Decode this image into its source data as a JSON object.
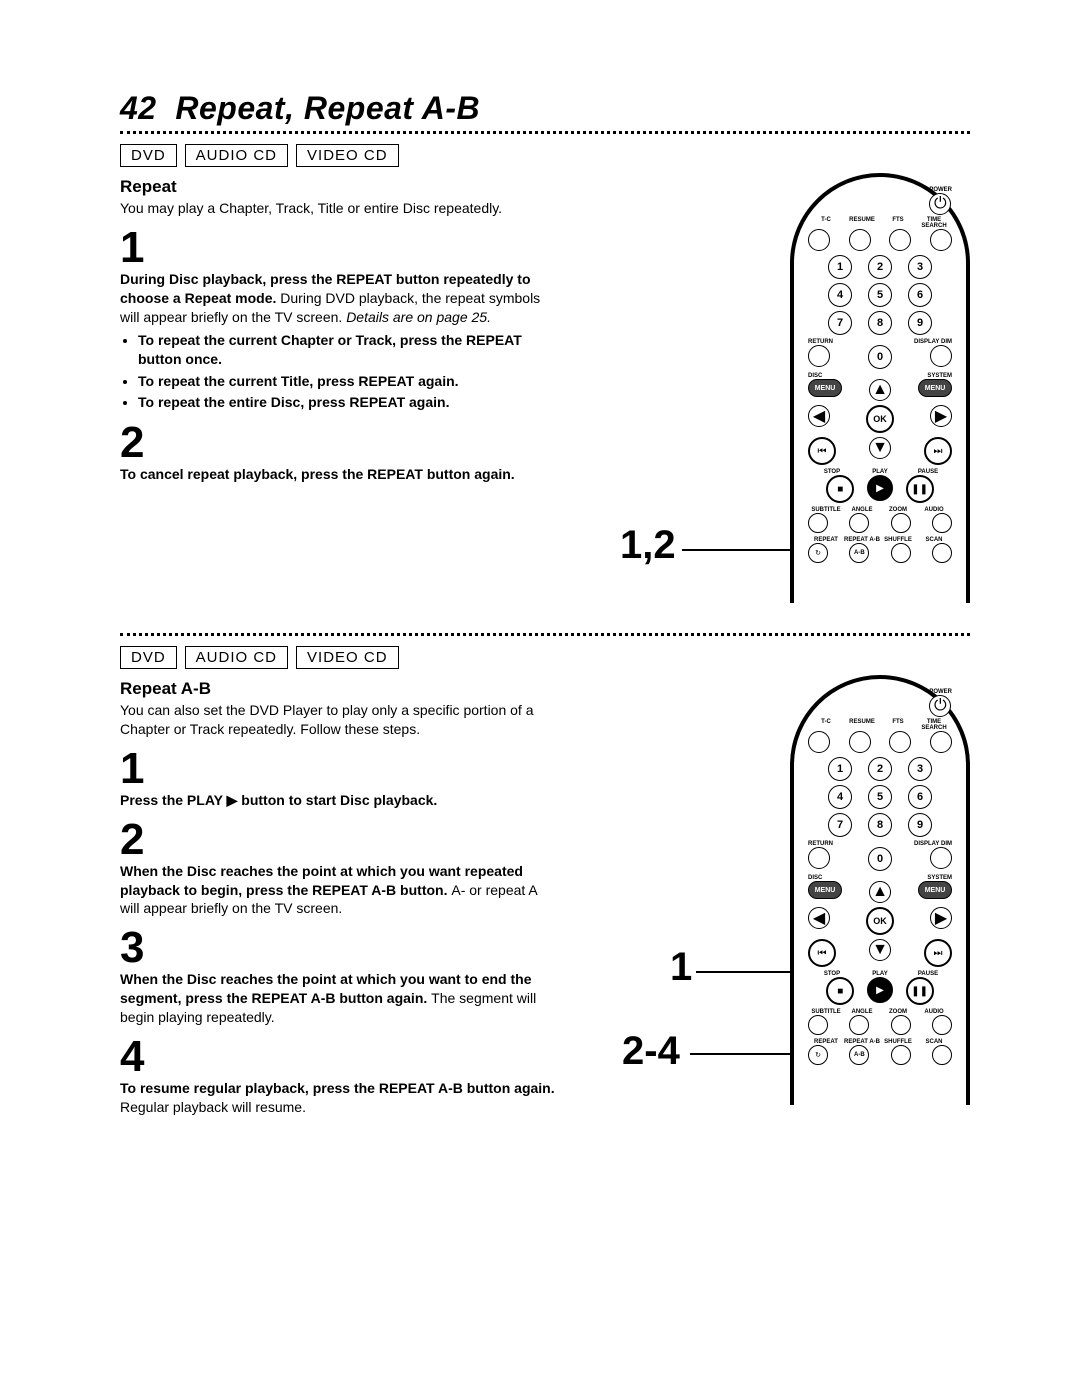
{
  "page_number": "42",
  "page_title": "Repeat, Repeat A-B",
  "media_types": [
    "DVD",
    "AUDIO CD",
    "VIDEO CD"
  ],
  "section1": {
    "heading": "Repeat",
    "intro": "You may play a Chapter, Track, Title or entire Disc repeatedly.",
    "step1": {
      "num": "1",
      "bold": "During Disc playback, press the REPEAT button repeatedly to choose a Repeat mode. ",
      "reg": "During DVD playback, the repeat symbols will appear briefly on the TV screen. ",
      "ital": "Details are on page 25.",
      "bullets": [
        "To repeat the current Chapter or Track, press the REPEAT button once.",
        "To repeat the current Title, press REPEAT again.",
        "To repeat the entire Disc, press REPEAT again."
      ]
    },
    "step2": {
      "num": "2",
      "bold": "To cancel repeat playback, press the REPEAT button again."
    },
    "callout": "1,2"
  },
  "section2": {
    "heading": "Repeat A-B",
    "intro": "You can also set the DVD Player to play only a specific portion of a Chapter or Track repeatedly. Follow these steps.",
    "step1": {
      "num": "1",
      "bold": "Press the PLAY ▶ button to start Disc playback."
    },
    "step2": {
      "num": "2",
      "bold": "When the Disc reaches the point at which you want repeated playback to begin, press the REPEAT A-B button. ",
      "reg": "A- or repeat A will appear briefly on the TV screen."
    },
    "step3": {
      "num": "3",
      "bold": "When the Disc reaches the point at which you want to end the segment, press the REPEAT A-B button again. ",
      "reg": "The segment will begin playing repeatedly."
    },
    "step4": {
      "num": "4",
      "bold": "To resume regular playback, press the REPEAT A-B button again. ",
      "reg": "Regular playback will resume."
    },
    "callout1": "1",
    "callout2": "2-4"
  },
  "remote": {
    "power": "POWER",
    "row1_labels": [
      "T-C",
      "RESUME",
      "FTS",
      "TIME SEARCH"
    ],
    "numpad": [
      [
        "1",
        "2",
        "3"
      ],
      [
        "4",
        "5",
        "6"
      ],
      [
        "7",
        "8",
        "9"
      ]
    ],
    "return": "RETURN",
    "display": "DISPLAY DIM",
    "zero": "0",
    "disc": "DISC",
    "system": "SYSTEM",
    "menu": "MENU",
    "ok": "OK",
    "transport_labels": [
      "STOP",
      "PLAY",
      "PAUSE"
    ],
    "row_a": [
      "SUBTITLE",
      "ANGLE",
      "ZOOM",
      "AUDIO"
    ],
    "row_b": [
      "REPEAT",
      "REPEAT A-B",
      "SHUFFLE",
      "SCAN"
    ],
    "ab": "A-B"
  }
}
